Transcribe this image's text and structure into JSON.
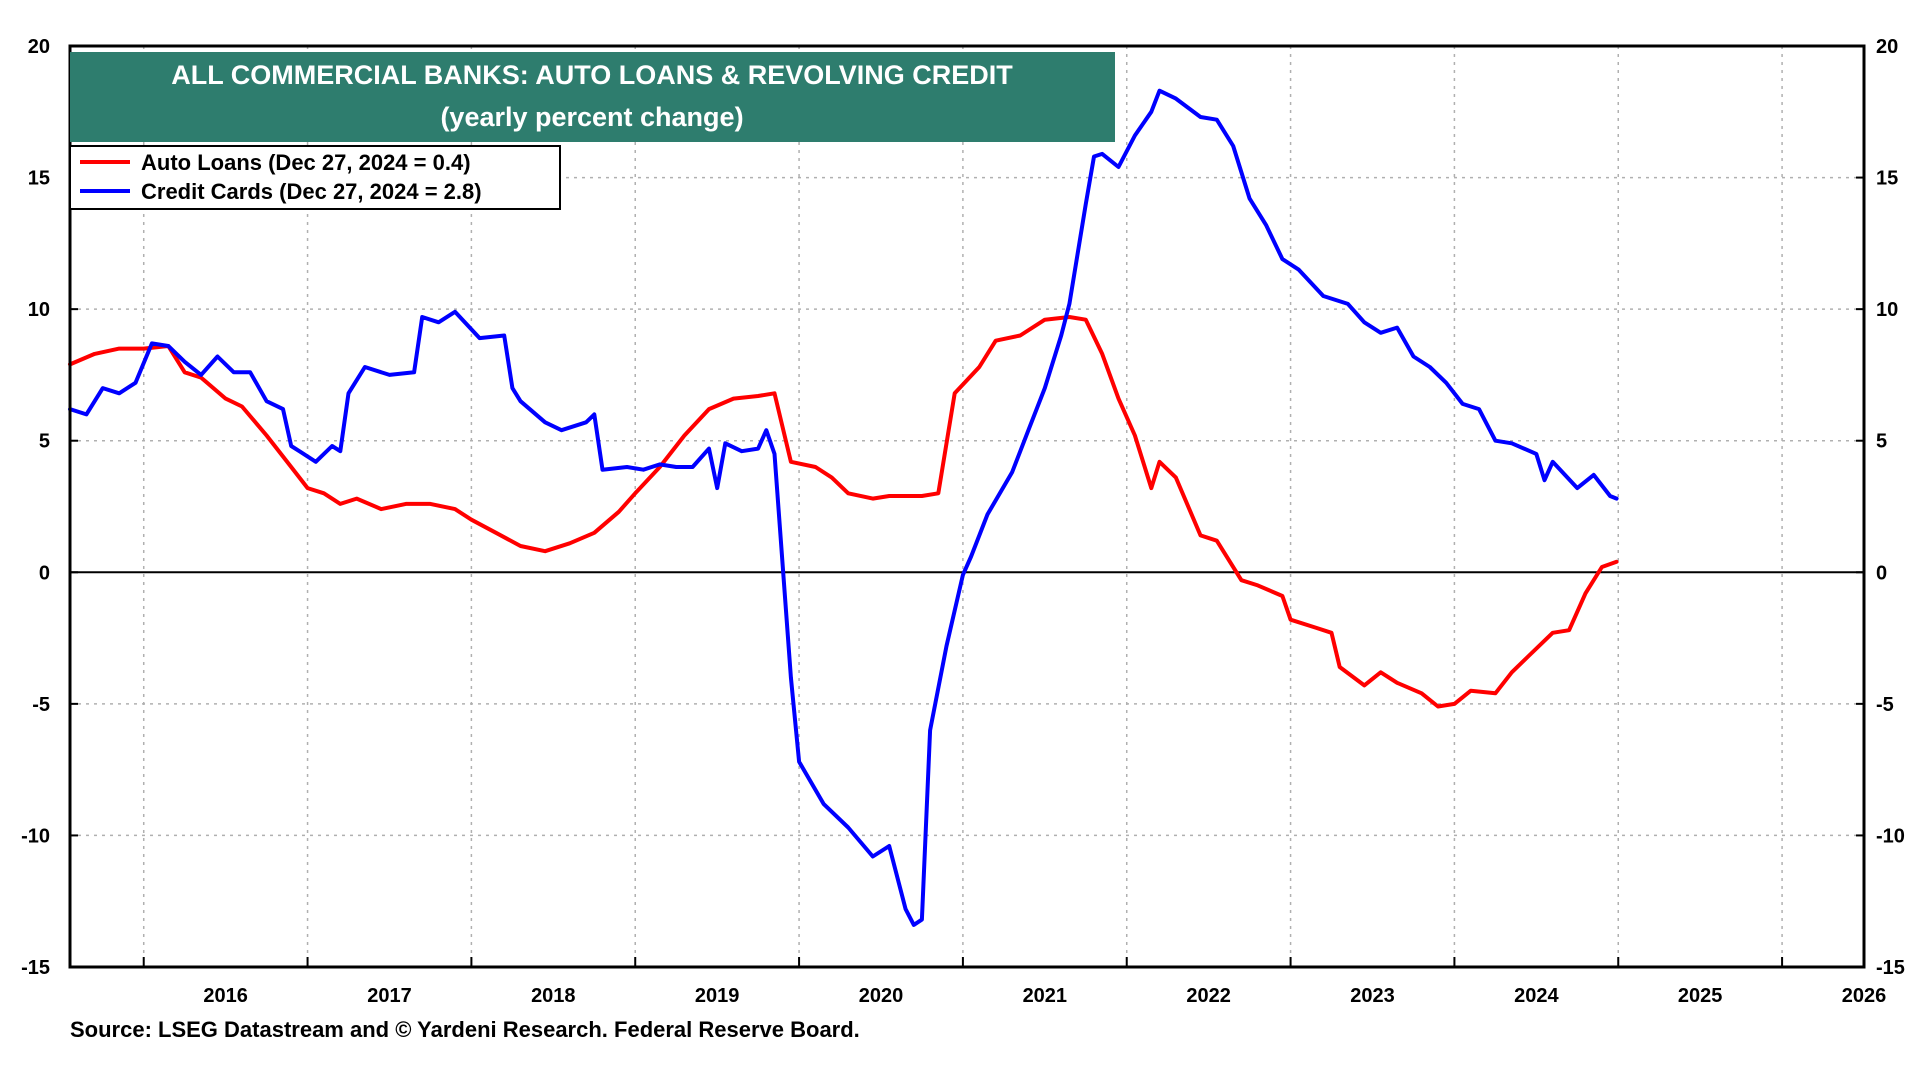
{
  "chart_data": {
    "type": "line",
    "title": "ALL COMMERCIAL BANKS: AUTO LOANS & REVOLVING CREDIT",
    "subtitle": "(yearly percent change)",
    "source": "Source: LSEG Datastream and © Yardeni Research. Federal Reserve Board.",
    "xlim": [
      2015.55,
      2026.5
    ],
    "ylim": [
      -15,
      20
    ],
    "yticks": [
      20,
      15,
      10,
      5,
      0,
      -5,
      -10,
      -15
    ],
    "year_labels": [
      "2016",
      "2017",
      "2018",
      "2019",
      "2020",
      "2021",
      "2022",
      "2023",
      "2024",
      "2025",
      "2026"
    ],
    "grid": true,
    "zero_line": true,
    "legend_position": "top-left",
    "colors": {
      "title_bg": "#2e7d6e",
      "auto": "#ff0000",
      "cards": "#0000ff"
    },
    "series": [
      {
        "name": "Auto Loans (Dec 27, 2024 = 0.4)",
        "key": "auto",
        "x": [
          2015.55,
          2015.7,
          2015.85,
          2016.0,
          2016.15,
          2016.25,
          2016.35,
          2016.5,
          2016.6,
          2016.75,
          2016.9,
          2017.0,
          2017.1,
          2017.2,
          2017.3,
          2017.45,
          2017.6,
          2017.75,
          2017.9,
          2018.0,
          2018.15,
          2018.3,
          2018.45,
          2018.6,
          2018.75,
          2018.9,
          2019.0,
          2019.15,
          2019.3,
          2019.45,
          2019.6,
          2019.75,
          2019.85,
          2019.95,
          2020.1,
          2020.2,
          2020.3,
          2020.45,
          2020.55,
          2020.7,
          2020.75,
          2020.85,
          2020.95,
          2021.1,
          2021.2,
          2021.35,
          2021.5,
          2021.65,
          2021.75,
          2021.85,
          2021.95,
          2022.05,
          2022.15,
          2022.2,
          2022.3,
          2022.45,
          2022.55,
          2022.7,
          2022.8,
          2022.95,
          2023.0,
          2023.15,
          2023.25,
          2023.3,
          2023.45,
          2023.55,
          2023.65,
          2023.8,
          2023.9,
          2024.0,
          2024.1,
          2024.25,
          2024.35,
          2024.45,
          2024.6,
          2024.7,
          2024.8,
          2024.9,
          2024.99
        ],
        "values": [
          7.9,
          8.3,
          8.5,
          8.5,
          8.6,
          7.6,
          7.4,
          6.6,
          6.3,
          5.2,
          4.0,
          3.2,
          3.0,
          2.6,
          2.8,
          2.4,
          2.6,
          2.6,
          2.4,
          2.0,
          1.5,
          1.0,
          0.8,
          1.1,
          1.5,
          2.3,
          3.0,
          4.0,
          5.2,
          6.2,
          6.6,
          6.7,
          6.8,
          4.2,
          4.0,
          3.6,
          3.0,
          2.8,
          2.9,
          2.9,
          2.9,
          3.0,
          6.8,
          7.8,
          8.8,
          9.0,
          9.6,
          9.7,
          9.6,
          8.3,
          6.6,
          5.2,
          3.2,
          4.2,
          3.6,
          1.4,
          1.2,
          -0.3,
          -0.5,
          -0.9,
          -1.8,
          -2.1,
          -2.3,
          -3.6,
          -4.3,
          -3.8,
          -4.2,
          -4.6,
          -5.1,
          -5.0,
          -4.5,
          -4.6,
          -3.8,
          -3.2,
          -2.3,
          -2.2,
          -0.8,
          0.2,
          0.4
        ]
      },
      {
        "name": "Credit Cards (Dec 27, 2024 = 2.8)",
        "key": "cards",
        "x": [
          2015.55,
          2015.65,
          2015.75,
          2015.85,
          2015.95,
          2016.05,
          2016.15,
          2016.25,
          2016.35,
          2016.45,
          2016.55,
          2016.65,
          2016.75,
          2016.85,
          2016.9,
          2016.95,
          2017.05,
          2017.15,
          2017.2,
          2017.25,
          2017.35,
          2017.5,
          2017.65,
          2017.7,
          2017.8,
          2017.9,
          2018.05,
          2018.2,
          2018.25,
          2018.3,
          2018.45,
          2018.55,
          2018.7,
          2018.75,
          2018.8,
          2018.95,
          2019.05,
          2019.15,
          2019.25,
          2019.35,
          2019.45,
          2019.5,
          2019.55,
          2019.65,
          2019.75,
          2019.8,
          2019.85,
          2019.95,
          2020.0,
          2020.15,
          2020.3,
          2020.45,
          2020.55,
          2020.65,
          2020.7,
          2020.75,
          2020.8,
          2020.9,
          2021.0,
          2021.05,
          2021.15,
          2021.3,
          2021.4,
          2021.5,
          2021.6,
          2021.65,
          2021.75,
          2021.8,
          2021.85,
          2021.95,
          2022.05,
          2022.15,
          2022.2,
          2022.3,
          2022.45,
          2022.55,
          2022.65,
          2022.75,
          2022.85,
          2022.95,
          2023.05,
          2023.2,
          2023.35,
          2023.45,
          2023.55,
          2023.65,
          2023.75,
          2023.85,
          2023.95,
          2024.05,
          2024.15,
          2024.25,
          2024.35,
          2024.5,
          2024.55,
          2024.6,
          2024.75,
          2024.85,
          2024.95,
          2024.99
        ],
        "values": [
          6.2,
          6.0,
          7.0,
          6.8,
          7.2,
          8.7,
          8.6,
          8.0,
          7.5,
          8.2,
          7.6,
          7.6,
          6.5,
          6.2,
          4.8,
          4.6,
          4.2,
          4.8,
          4.6,
          6.8,
          7.8,
          7.5,
          7.6,
          9.7,
          9.5,
          9.9,
          8.9,
          9.0,
          7.0,
          6.5,
          5.7,
          5.4,
          5.7,
          6.0,
          3.9,
          4.0,
          3.9,
          4.1,
          4.0,
          4.0,
          4.7,
          3.2,
          4.9,
          4.6,
          4.7,
          5.4,
          4.5,
          -4.0,
          -7.2,
          -8.8,
          -9.7,
          -10.8,
          -10.4,
          -12.8,
          -13.4,
          -13.2,
          -6.0,
          -2.8,
          -0.1,
          0.6,
          2.2,
          3.8,
          5.4,
          7.0,
          9.0,
          10.2,
          14.0,
          15.8,
          15.9,
          15.4,
          16.6,
          17.5,
          18.3,
          18.0,
          17.3,
          17.2,
          16.2,
          14.2,
          13.2,
          11.9,
          11.5,
          10.5,
          10.2,
          9.5,
          9.1,
          9.3,
          8.2,
          7.8,
          7.2,
          6.4,
          6.2,
          5.0,
          4.9,
          4.5,
          3.5,
          4.2,
          3.2,
          3.7,
          2.9,
          2.8
        ]
      }
    ]
  }
}
